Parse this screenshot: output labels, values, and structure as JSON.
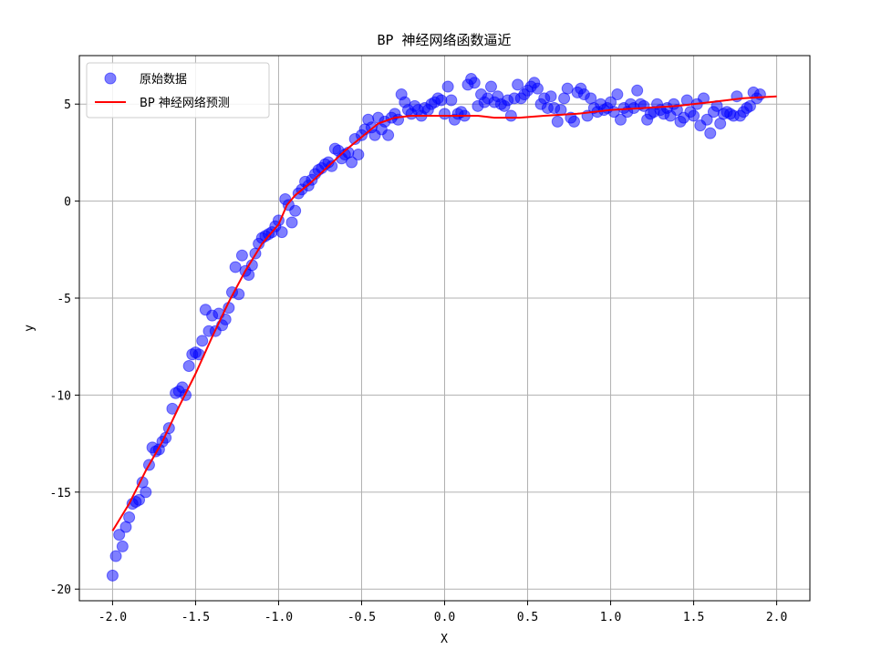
{
  "chart_data": {
    "type": "scatter",
    "title": "BP 神经网络函数逼近",
    "xlabel": "X",
    "ylabel": "y",
    "xlim": [
      -2.2,
      2.2
    ],
    "ylim": [
      -20.6,
      7.5
    ],
    "xticks": [
      -2.0,
      -1.5,
      -1.0,
      -0.5,
      0.0,
      0.5,
      1.0,
      1.5,
      2.0
    ],
    "xtick_labels": [
      "-2.0",
      "-1.5",
      "-1.0",
      "-0.5",
      "0.0",
      "0.5",
      "1.0",
      "1.5",
      "2.0"
    ],
    "yticks": [
      -20,
      -15,
      -10,
      -5,
      0,
      5
    ],
    "ytick_labels": [
      "-20",
      "-15",
      "-10",
      "-5",
      "0",
      "5"
    ],
    "grid": true,
    "legend": {
      "placement": "top-left"
    },
    "series": [
      {
        "name": "原始数据",
        "kind": "scatter",
        "color": "#0000ff",
        "points": [
          [
            -2.0,
            -19.3
          ],
          [
            -1.98,
            -18.3
          ],
          [
            -1.96,
            -17.2
          ],
          [
            -1.94,
            -17.8
          ],
          [
            -1.92,
            -16.8
          ],
          [
            -1.9,
            -16.3
          ],
          [
            -1.88,
            -15.6
          ],
          [
            -1.86,
            -15.5
          ],
          [
            -1.84,
            -15.4
          ],
          [
            -1.82,
            -14.5
          ],
          [
            -1.8,
            -15.0
          ],
          [
            -1.78,
            -13.6
          ],
          [
            -1.76,
            -12.7
          ],
          [
            -1.74,
            -12.9
          ],
          [
            -1.72,
            -12.8
          ],
          [
            -1.7,
            -12.4
          ],
          [
            -1.68,
            -12.2
          ],
          [
            -1.66,
            -11.7
          ],
          [
            -1.64,
            -10.7
          ],
          [
            -1.62,
            -9.9
          ],
          [
            -1.6,
            -9.8
          ],
          [
            -1.58,
            -9.6
          ],
          [
            -1.56,
            -10.0
          ],
          [
            -1.54,
            -8.5
          ],
          [
            -1.52,
            -7.9
          ],
          [
            -1.5,
            -7.8
          ],
          [
            -1.48,
            -7.9
          ],
          [
            -1.46,
            -7.2
          ],
          [
            -1.44,
            -5.6
          ],
          [
            -1.42,
            -6.7
          ],
          [
            -1.4,
            -5.9
          ],
          [
            -1.38,
            -6.7
          ],
          [
            -1.36,
            -5.8
          ],
          [
            -1.34,
            -6.4
          ],
          [
            -1.32,
            -6.1
          ],
          [
            -1.3,
            -5.5
          ],
          [
            -1.28,
            -4.7
          ],
          [
            -1.26,
            -3.4
          ],
          [
            -1.24,
            -4.8
          ],
          [
            -1.22,
            -2.8
          ],
          [
            -1.2,
            -3.6
          ],
          [
            -1.18,
            -3.8
          ],
          [
            -1.16,
            -3.3
          ],
          [
            -1.14,
            -2.7
          ],
          [
            -1.12,
            -2.2
          ],
          [
            -1.1,
            -1.9
          ],
          [
            -1.08,
            -1.8
          ],
          [
            -1.06,
            -1.7
          ],
          [
            -1.04,
            -1.6
          ],
          [
            -1.02,
            -1.3
          ],
          [
            -1.0,
            -1.0
          ],
          [
            -0.98,
            -1.6
          ],
          [
            -0.96,
            0.1
          ],
          [
            -0.94,
            -0.2
          ],
          [
            -0.92,
            -1.1
          ],
          [
            -0.9,
            -0.5
          ],
          [
            -0.88,
            0.4
          ],
          [
            -0.86,
            0.6
          ],
          [
            -0.84,
            1.0
          ],
          [
            -0.82,
            0.8
          ],
          [
            -0.8,
            1.1
          ],
          [
            -0.78,
            1.4
          ],
          [
            -0.76,
            1.6
          ],
          [
            -0.74,
            1.7
          ],
          [
            -0.72,
            1.9
          ],
          [
            -0.7,
            2.0
          ],
          [
            -0.68,
            1.8
          ],
          [
            -0.66,
            2.7
          ],
          [
            -0.64,
            2.6
          ],
          [
            -0.62,
            2.2
          ],
          [
            -0.6,
            2.4
          ],
          [
            -0.58,
            2.5
          ],
          [
            -0.56,
            2.0
          ],
          [
            -0.54,
            3.2
          ],
          [
            -0.52,
            2.4
          ],
          [
            -0.5,
            3.4
          ],
          [
            -0.48,
            3.7
          ],
          [
            -0.46,
            4.2
          ],
          [
            -0.44,
            3.8
          ],
          [
            -0.42,
            3.4
          ],
          [
            -0.4,
            4.3
          ],
          [
            -0.38,
            3.7
          ],
          [
            -0.36,
            4.1
          ],
          [
            -0.34,
            3.4
          ],
          [
            -0.32,
            4.3
          ],
          [
            -0.3,
            4.5
          ],
          [
            -0.28,
            4.2
          ],
          [
            -0.26,
            5.5
          ],
          [
            -0.24,
            5.1
          ],
          [
            -0.22,
            4.7
          ],
          [
            -0.2,
            4.5
          ],
          [
            -0.18,
            4.9
          ],
          [
            -0.16,
            4.7
          ],
          [
            -0.14,
            4.4
          ],
          [
            -0.12,
            4.8
          ],
          [
            -0.1,
            4.7
          ],
          [
            -0.08,
            5.0
          ],
          [
            -0.06,
            5.1
          ],
          [
            -0.04,
            5.3
          ],
          [
            -0.02,
            5.2
          ],
          [
            0.0,
            4.5
          ],
          [
            0.02,
            5.9
          ],
          [
            0.04,
            5.2
          ],
          [
            0.06,
            4.2
          ],
          [
            0.08,
            4.5
          ],
          [
            0.1,
            4.6
          ],
          [
            0.12,
            4.4
          ],
          [
            0.14,
            6.0
          ],
          [
            0.16,
            6.3
          ],
          [
            0.18,
            6.1
          ],
          [
            0.2,
            4.9
          ],
          [
            0.22,
            5.5
          ],
          [
            0.24,
            5.1
          ],
          [
            0.26,
            5.3
          ],
          [
            0.28,
            5.9
          ],
          [
            0.3,
            5.1
          ],
          [
            0.32,
            5.4
          ],
          [
            0.34,
            5.0
          ],
          [
            0.36,
            4.9
          ],
          [
            0.38,
            5.2
          ],
          [
            0.4,
            4.4
          ],
          [
            0.42,
            5.3
          ],
          [
            0.44,
            6.0
          ],
          [
            0.46,
            5.3
          ],
          [
            0.48,
            5.5
          ],
          [
            0.5,
            5.7
          ],
          [
            0.52,
            5.9
          ],
          [
            0.54,
            6.1
          ],
          [
            0.56,
            5.8
          ],
          [
            0.58,
            5.0
          ],
          [
            0.6,
            5.3
          ],
          [
            0.62,
            4.8
          ],
          [
            0.64,
            5.4
          ],
          [
            0.66,
            4.8
          ],
          [
            0.68,
            4.1
          ],
          [
            0.7,
            4.7
          ],
          [
            0.72,
            5.3
          ],
          [
            0.74,
            5.8
          ],
          [
            0.76,
            4.3
          ],
          [
            0.78,
            4.1
          ],
          [
            0.8,
            5.6
          ],
          [
            0.82,
            5.8
          ],
          [
            0.84,
            5.5
          ],
          [
            0.86,
            4.4
          ],
          [
            0.88,
            5.3
          ],
          [
            0.9,
            4.8
          ],
          [
            0.92,
            4.6
          ],
          [
            0.94,
            5.0
          ],
          [
            0.96,
            4.7
          ],
          [
            0.98,
            4.8
          ],
          [
            1.0,
            5.1
          ],
          [
            1.02,
            4.6
          ],
          [
            1.04,
            5.5
          ],
          [
            1.06,
            4.2
          ],
          [
            1.08,
            4.8
          ],
          [
            1.1,
            4.6
          ],
          [
            1.12,
            5.0
          ],
          [
            1.14,
            4.8
          ],
          [
            1.16,
            5.7
          ],
          [
            1.18,
            5.0
          ],
          [
            1.2,
            4.9
          ],
          [
            1.22,
            4.2
          ],
          [
            1.24,
            4.5
          ],
          [
            1.26,
            4.6
          ],
          [
            1.28,
            5.0
          ],
          [
            1.3,
            4.7
          ],
          [
            1.32,
            4.5
          ],
          [
            1.34,
            4.8
          ],
          [
            1.36,
            4.4
          ],
          [
            1.38,
            5.0
          ],
          [
            1.4,
            4.7
          ],
          [
            1.42,
            4.1
          ],
          [
            1.44,
            4.3
          ],
          [
            1.46,
            5.2
          ],
          [
            1.48,
            4.6
          ],
          [
            1.5,
            4.4
          ],
          [
            1.52,
            5.0
          ],
          [
            1.54,
            3.9
          ],
          [
            1.56,
            5.3
          ],
          [
            1.58,
            4.2
          ],
          [
            1.6,
            3.5
          ],
          [
            1.62,
            4.6
          ],
          [
            1.64,
            4.9
          ],
          [
            1.66,
            4.0
          ],
          [
            1.68,
            4.5
          ],
          [
            1.7,
            4.6
          ],
          [
            1.72,
            4.5
          ],
          [
            1.74,
            4.4
          ],
          [
            1.76,
            5.4
          ],
          [
            1.78,
            4.4
          ],
          [
            1.8,
            4.6
          ],
          [
            1.82,
            4.8
          ],
          [
            1.84,
            4.9
          ],
          [
            1.86,
            5.6
          ],
          [
            1.88,
            5.3
          ],
          [
            1.9,
            5.5
          ]
        ]
      },
      {
        "name": "BP 神经网络预测",
        "kind": "line",
        "color": "#ff0000",
        "points": [
          [
            -2.0,
            -17.0
          ],
          [
            -1.9,
            -15.6
          ],
          [
            -1.8,
            -13.9
          ],
          [
            -1.7,
            -12.4
          ],
          [
            -1.6,
            -10.6
          ],
          [
            -1.5,
            -8.9
          ],
          [
            -1.4,
            -7.0
          ],
          [
            -1.3,
            -5.2
          ],
          [
            -1.2,
            -3.6
          ],
          [
            -1.1,
            -2.2
          ],
          [
            -1.0,
            -1.2
          ],
          [
            -0.95,
            -0.2
          ],
          [
            -0.9,
            0.3
          ],
          [
            -0.8,
            1.0
          ],
          [
            -0.7,
            1.8
          ],
          [
            -0.6,
            2.6
          ],
          [
            -0.5,
            3.3
          ],
          [
            -0.4,
            4.0
          ],
          [
            -0.3,
            4.3
          ],
          [
            -0.2,
            4.4
          ],
          [
            0.0,
            4.4
          ],
          [
            0.2,
            4.4
          ],
          [
            0.3,
            4.3
          ],
          [
            0.45,
            4.3
          ],
          [
            0.6,
            4.4
          ],
          [
            0.8,
            4.5
          ],
          [
            1.0,
            4.7
          ],
          [
            1.2,
            4.8
          ],
          [
            1.4,
            4.9
          ],
          [
            1.6,
            5.1
          ],
          [
            1.8,
            5.3
          ],
          [
            2.0,
            5.4
          ]
        ]
      }
    ]
  }
}
